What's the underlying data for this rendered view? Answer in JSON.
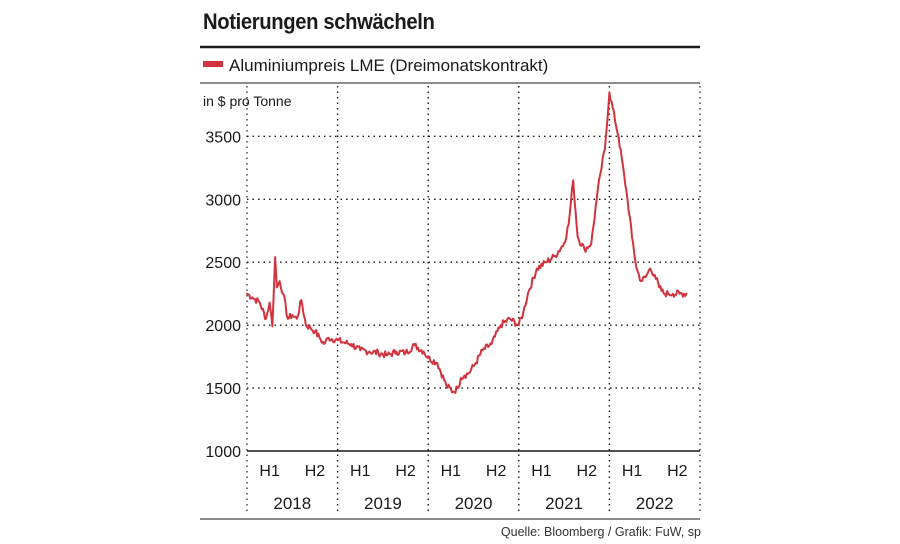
{
  "title": "Notierungen schwächeln",
  "source": "Quelle: Bloomberg / Grafik: FuW, sp",
  "chart_data": {
    "type": "line",
    "title": "Notierungen schwächeln",
    "legend": "Aluminiumpreis LME (Dreimonatskontrakt)",
    "ylabel": "in $ pro Tonne",
    "ylim": [
      1000,
      3900
    ],
    "yticks": [
      1000,
      1500,
      2000,
      2500,
      3000,
      3500
    ],
    "xlim": [
      0,
      10
    ],
    "half_labels": [
      "H1",
      "H2",
      "H1",
      "H2",
      "H1",
      "H2",
      "H1",
      "H2",
      "H1",
      "H2"
    ],
    "year_labels": [
      "2018",
      "2019",
      "2020",
      "2021",
      "2022"
    ],
    "colors": {
      "line": "#d1343f",
      "grid": "#1a1a1a",
      "text": "#1a1a1a"
    },
    "series": [
      {
        "name": "Aluminiumpreis LME (Dreimonatskontrakt)",
        "x": [
          0.0,
          0.12,
          0.28,
          0.42,
          0.5,
          0.56,
          0.62,
          0.66,
          0.72,
          0.8,
          0.9,
          1.0,
          1.1,
          1.2,
          1.3,
          1.4,
          1.5,
          1.6,
          1.7,
          1.8,
          2.0,
          2.15,
          2.3,
          2.5,
          2.7,
          2.9,
          3.1,
          3.3,
          3.5,
          3.7,
          3.9,
          4.0,
          4.2,
          4.4,
          4.55,
          4.65,
          4.72,
          4.8,
          4.9,
          5.05,
          5.2,
          5.4,
          5.6,
          5.8,
          6.0,
          6.1,
          6.2,
          6.4,
          6.6,
          6.8,
          7.0,
          7.1,
          7.2,
          7.3,
          7.45,
          7.6,
          7.72,
          7.8,
          7.9,
          8.0,
          8.2,
          8.4,
          8.5,
          8.6,
          8.7,
          8.8,
          8.9,
          9.0,
          9.1,
          9.2,
          9.3,
          9.4,
          9.55,
          9.7
        ],
        "values": [
          2250,
          2220,
          2180,
          2050,
          2180,
          1990,
          2540,
          2300,
          2350,
          2250,
          2050,
          2080,
          2050,
          2200,
          2000,
          1980,
          1950,
          1900,
          1850,
          1900,
          1880,
          1860,
          1850,
          1800,
          1790,
          1780,
          1760,
          1790,
          1780,
          1840,
          1790,
          1740,
          1700,
          1520,
          1470,
          1500,
          1580,
          1600,
          1620,
          1700,
          1800,
          1850,
          2000,
          2050,
          2000,
          2100,
          2250,
          2450,
          2500,
          2550,
          2650,
          2800,
          3150,
          2700,
          2600,
          2650,
          3000,
          3200,
          3400,
          3850,
          3500,
          3000,
          2700,
          2450,
          2350,
          2380,
          2450,
          2400,
          2300,
          2250,
          2250,
          2250,
          2250,
          2250
        ]
      }
    ]
  }
}
